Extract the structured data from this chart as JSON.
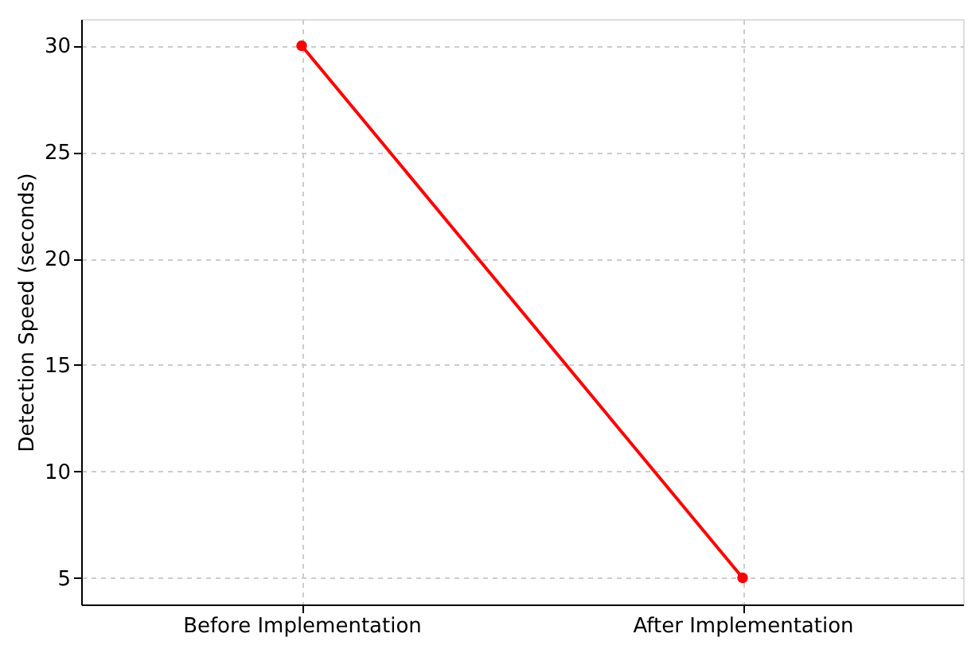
{
  "chart_data": {
    "type": "line",
    "ylabel": "Detection Speed (seconds)",
    "categories": [
      "Before Implementation",
      "After Implementation"
    ],
    "series": [
      {
        "color": "#ff0000",
        "values": [
          30,
          5
        ]
      }
    ],
    "ylim": [
      3.75,
      31.25
    ],
    "yticks": [
      5,
      10,
      15,
      20,
      25,
      30
    ],
    "grid": true,
    "marker": "circle",
    "line_style": "solid"
  }
}
